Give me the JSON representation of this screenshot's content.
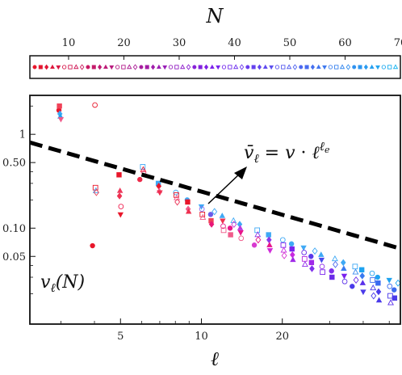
{
  "chart_data": [
    {
      "type": "colorbar",
      "xlabel": "N",
      "range": [
        3,
        70
      ],
      "ticks": [
        10,
        20,
        30,
        40,
        50,
        60,
        70
      ],
      "colors": [
        "#e8162a",
        "#7a22ee",
        "#19b3f0"
      ]
    },
    {
      "type": "scatter",
      "xlabel": "ℓ",
      "ylabel": "",
      "xscale": "log",
      "yscale": "log",
      "xlim": [
        2.3,
        55
      ],
      "ylim": [
        0.0095,
        2.6
      ],
      "xticks": [
        5,
        10,
        20
      ],
      "xtick_labels": [
        "5",
        "10",
        "20"
      ],
      "yticks": [
        1,
        0.5,
        0.1,
        0.05
      ],
      "ytick_labels": [
        "1",
        "0.50",
        "0.10",
        "0.05"
      ],
      "grid": false,
      "fit": {
        "label": "v̄ℓ = v · ℓ^ℓe",
        "coef": 1.62,
        "exponent": -0.82
      },
      "series_label": "vℓ(N)",
      "points": [
        [
          3,
          1.8,
          "#e8162a"
        ],
        [
          3,
          2.0,
          "#f04258"
        ],
        [
          3,
          1.65,
          "#3fa9f5"
        ],
        [
          3,
          1.55,
          "#1fa3f0"
        ],
        [
          3,
          1.45,
          "#f05a8a"
        ],
        [
          4,
          2.05,
          "#e8162a"
        ],
        [
          4,
          0.27,
          "#e8162a"
        ],
        [
          4,
          0.25,
          "#3fa9f5"
        ],
        [
          4,
          0.24,
          "#f04258"
        ],
        [
          4,
          0.065,
          "#e8162a"
        ],
        [
          5,
          0.37,
          "#e8162a"
        ],
        [
          5,
          0.22,
          "#ee3050"
        ],
        [
          5,
          0.25,
          "#ec3a5c"
        ],
        [
          5,
          0.14,
          "#e8162a"
        ],
        [
          5,
          0.17,
          "#f02050"
        ],
        [
          6,
          0.45,
          "#3fa9f5"
        ],
        [
          6,
          0.42,
          "#e8162a"
        ],
        [
          6,
          0.39,
          "#f05a8a"
        ],
        [
          6,
          0.33,
          "#ec2a48"
        ],
        [
          7,
          0.3,
          "#3fa9f5"
        ],
        [
          7,
          0.28,
          "#e8162a"
        ],
        [
          7,
          0.25,
          "#f05a8a"
        ],
        [
          7,
          0.24,
          "#ee3050"
        ],
        [
          8,
          0.24,
          "#3fa9f5"
        ],
        [
          8,
          0.225,
          "#e8162a"
        ],
        [
          8,
          0.21,
          "#f05a8a"
        ],
        [
          8,
          0.19,
          "#ec3a5c"
        ],
        [
          9,
          0.2,
          "#3fa9f5"
        ],
        [
          9,
          0.19,
          "#e8162a"
        ],
        [
          9,
          0.16,
          "#f05a8a"
        ],
        [
          9,
          0.15,
          "#ee3050"
        ],
        [
          10,
          0.17,
          "#3fa9f5"
        ],
        [
          10,
          0.16,
          "#8a6cf0"
        ],
        [
          10,
          0.14,
          "#e8162a"
        ],
        [
          10,
          0.13,
          "#f05a8a"
        ],
        [
          11,
          0.15,
          "#3fa9f5"
        ],
        [
          11,
          0.14,
          "#6a5ae8"
        ],
        [
          11,
          0.12,
          "#f04258"
        ],
        [
          11,
          0.11,
          "#e81678"
        ],
        [
          12,
          0.135,
          "#3fa9f5"
        ],
        [
          12,
          0.12,
          "#ee3050"
        ],
        [
          12,
          0.105,
          "#e8168a"
        ],
        [
          12,
          0.095,
          "#f05a8a"
        ],
        [
          13,
          0.12,
          "#3fa9f5"
        ],
        [
          13,
          0.11,
          "#c83ad8"
        ],
        [
          13,
          0.1,
          "#e8168a"
        ],
        [
          13,
          0.085,
          "#f05a8a"
        ],
        [
          14,
          0.11,
          "#3fa9f5"
        ],
        [
          14,
          0.1,
          "#b83ae0"
        ],
        [
          14,
          0.09,
          "#e8168a"
        ],
        [
          14,
          0.078,
          "#f05a8a"
        ],
        [
          16,
          0.095,
          "#3fa9f5"
        ],
        [
          16,
          0.085,
          "#8a3ae8"
        ],
        [
          16,
          0.075,
          "#e8168a"
        ],
        [
          16,
          0.066,
          "#d83ad0"
        ],
        [
          18,
          0.085,
          "#3fa9f5"
        ],
        [
          18,
          0.075,
          "#8a3ae8"
        ],
        [
          18,
          0.066,
          "#e8168a"
        ],
        [
          18,
          0.058,
          "#d02ad8"
        ],
        [
          20,
          0.075,
          "#3fa9f5"
        ],
        [
          20,
          0.066,
          "#7a22ee"
        ],
        [
          20,
          0.058,
          "#c82ae0"
        ],
        [
          20,
          0.051,
          "#d83ad0"
        ],
        [
          22,
          0.068,
          "#3fa9f5"
        ],
        [
          22,
          0.06,
          "#7a22ee"
        ],
        [
          22,
          0.052,
          "#c82ae0"
        ],
        [
          22,
          0.046,
          "#a02ae8"
        ],
        [
          24,
          0.062,
          "#3fa9f5"
        ],
        [
          24,
          0.055,
          "#6a2ae8"
        ],
        [
          24,
          0.047,
          "#b82ae0"
        ],
        [
          24,
          0.041,
          "#9030ea"
        ],
        [
          26,
          0.057,
          "#3fa9f5"
        ],
        [
          26,
          0.05,
          "#5a3aea"
        ],
        [
          26,
          0.043,
          "#a02ae8"
        ],
        [
          26,
          0.037,
          "#8030ec"
        ],
        [
          28,
          0.052,
          "#3fa9f5"
        ],
        [
          28,
          0.046,
          "#4a4aec"
        ],
        [
          28,
          0.039,
          "#9030ea"
        ],
        [
          28,
          0.034,
          "#7a22ee"
        ],
        [
          31,
          0.047,
          "#3fa9f5"
        ],
        [
          31,
          0.041,
          "#4a6aee"
        ],
        [
          31,
          0.035,
          "#8030ec"
        ],
        [
          31,
          0.03,
          "#6a2ae8"
        ],
        [
          34,
          0.043,
          "#3fa9f5"
        ],
        [
          34,
          0.037,
          "#3a7af0"
        ],
        [
          34,
          0.031,
          "#7a22ee"
        ],
        [
          34,
          0.027,
          "#5a30ea"
        ],
        [
          37,
          0.039,
          "#3fa9f5"
        ],
        [
          37,
          0.034,
          "#3a8af0"
        ],
        [
          37,
          0.028,
          "#6a2ae8"
        ],
        [
          37,
          0.024,
          "#4a3aea"
        ],
        [
          40,
          0.036,
          "#1fa3f0"
        ],
        [
          40,
          0.031,
          "#3a7af0"
        ],
        [
          40,
          0.026,
          "#5a30ea"
        ],
        [
          40,
          0.021,
          "#4a3aea"
        ],
        [
          43,
          0.033,
          "#1fa3f0"
        ],
        [
          43,
          0.028,
          "#3a6af0"
        ],
        [
          43,
          0.023,
          "#4a3aea"
        ],
        [
          43,
          0.019,
          "#4a3aea"
        ],
        [
          46,
          0.03,
          "#1fa3f0"
        ],
        [
          46,
          0.026,
          "#3a6af0"
        ],
        [
          46,
          0.021,
          "#4a3aea"
        ],
        [
          46,
          0.017,
          "#4a3aea"
        ],
        [
          50,
          0.028,
          "#1fa3f0"
        ],
        [
          50,
          0.024,
          "#3a6af0"
        ],
        [
          50,
          0.019,
          "#4a3aea"
        ],
        [
          50,
          0.016,
          "#5a30ea"
        ],
        [
          53,
          0.026,
          "#1fa3f0"
        ],
        [
          53,
          0.022,
          "#3a6af0"
        ],
        [
          53,
          0.018,
          "#4a3aea"
        ]
      ]
    }
  ]
}
